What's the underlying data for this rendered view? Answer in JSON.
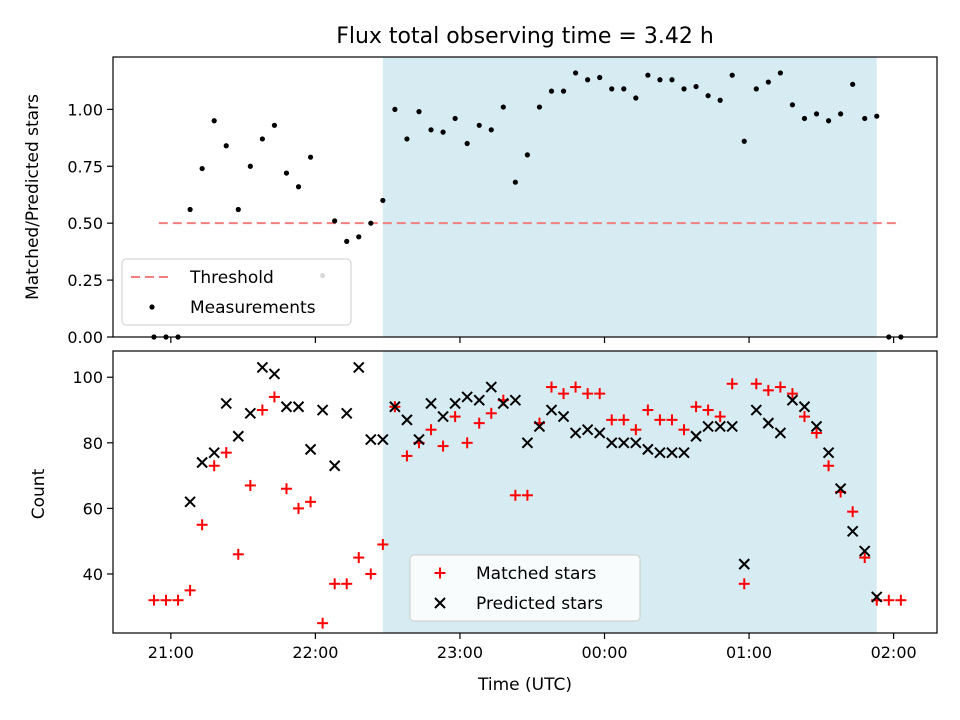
{
  "chart_data": [
    {
      "type": "scatter",
      "title": "Flux total observing time = 3.42 h",
      "ylabel": "Matched/Predicted stars",
      "xlabel": "",
      "ylim": [
        0,
        1.23
      ],
      "yticks": [
        0.0,
        0.25,
        0.5,
        0.75,
        1.0
      ],
      "ytick_labels": [
        "0.00",
        "0.25",
        "0.50",
        "0.75",
        "1.00"
      ],
      "shaded_region": {
        "start": "22:28",
        "end": "01:53",
        "color": "#add8e6"
      },
      "threshold": {
        "name": "Threshold",
        "value": 0.5,
        "x_start": "20:55",
        "x_end": "02:03",
        "color": "#f08080",
        "style": "dashed"
      },
      "legend": {
        "location": "lower-left",
        "entries": [
          "Threshold",
          "Measurements"
        ]
      },
      "series": [
        {
          "name": "Measurements",
          "color": "#000000",
          "marker": "dot",
          "points": [
            [
              "20:53",
              0.0
            ],
            [
              "20:58",
              0.0
            ],
            [
              "21:03",
              0.0
            ],
            [
              "21:08",
              0.56
            ],
            [
              "21:13",
              0.74
            ],
            [
              "21:18",
              0.95
            ],
            [
              "21:23",
              0.84
            ],
            [
              "21:28",
              0.56
            ],
            [
              "21:33",
              0.75
            ],
            [
              "21:38",
              0.87
            ],
            [
              "21:43",
              0.93
            ],
            [
              "21:48",
              0.72
            ],
            [
              "21:53",
              0.66
            ],
            [
              "21:58",
              0.79
            ],
            [
              "22:03",
              0.27
            ],
            [
              "22:08",
              0.51
            ],
            [
              "22:13",
              0.42
            ],
            [
              "22:18",
              0.44
            ],
            [
              "22:23",
              0.5
            ],
            [
              "22:28",
              0.6
            ],
            [
              "22:33",
              1.0
            ],
            [
              "22:38",
              0.87
            ],
            [
              "22:43",
              0.99
            ],
            [
              "22:48",
              0.91
            ],
            [
              "22:53",
              0.9
            ],
            [
              "22:58",
              0.96
            ],
            [
              "23:03",
              0.85
            ],
            [
              "23:08",
              0.93
            ],
            [
              "23:13",
              0.91
            ],
            [
              "23:18",
              1.01
            ],
            [
              "23:23",
              0.68
            ],
            [
              "23:28",
              0.8
            ],
            [
              "23:33",
              1.01
            ],
            [
              "23:38",
              1.08
            ],
            [
              "23:43",
              1.08
            ],
            [
              "23:48",
              1.16
            ],
            [
              "23:53",
              1.13
            ],
            [
              "23:58",
              1.14
            ],
            [
              "00:03",
              1.09
            ],
            [
              "00:08",
              1.09
            ],
            [
              "00:13",
              1.05
            ],
            [
              "00:18",
              1.15
            ],
            [
              "00:23",
              1.13
            ],
            [
              "00:28",
              1.13
            ],
            [
              "00:33",
              1.09
            ],
            [
              "00:38",
              1.1
            ],
            [
              "00:43",
              1.06
            ],
            [
              "00:48",
              1.04
            ],
            [
              "00:53",
              1.15
            ],
            [
              "00:58",
              0.86
            ],
            [
              "01:03",
              1.09
            ],
            [
              "01:08",
              1.12
            ],
            [
              "01:13",
              1.16
            ],
            [
              "01:18",
              1.02
            ],
            [
              "01:23",
              0.96
            ],
            [
              "01:28",
              0.98
            ],
            [
              "01:33",
              0.95
            ],
            [
              "01:38",
              0.98
            ],
            [
              "01:43",
              1.11
            ],
            [
              "01:48",
              0.96
            ],
            [
              "01:53",
              0.97
            ],
            [
              "01:58",
              0.0
            ],
            [
              "02:03",
              0.0
            ]
          ]
        }
      ]
    },
    {
      "type": "scatter",
      "title": "",
      "xlabel": "Time (UTC)",
      "ylabel": "Count",
      "ylim": [
        22,
        108
      ],
      "yticks": [
        40,
        60,
        80,
        100
      ],
      "ytick_labels": [
        "40",
        "60",
        "80",
        "100"
      ],
      "xlim": [
        "20:36",
        "02:18"
      ],
      "xticks": [
        "21:00",
        "22:00",
        "23:00",
        "00:00",
        "01:00",
        "02:00"
      ],
      "xtick_labels": [
        "21:00",
        "22:00",
        "23:00",
        "00:00",
        "01:00",
        "02:00"
      ],
      "shaded_region": {
        "start": "22:28",
        "end": "01:53",
        "color": "#add8e6"
      },
      "legend": {
        "location": "lower-center",
        "entries": [
          "Matched stars",
          "Predicted stars"
        ]
      },
      "series": [
        {
          "name": "Matched stars",
          "color": "#ff0000",
          "marker": "plus",
          "points": [
            [
              "20:53",
              32
            ],
            [
              "20:58",
              32
            ],
            [
              "21:03",
              32
            ],
            [
              "21:08",
              35
            ],
            [
              "21:13",
              55
            ],
            [
              "21:18",
              73
            ],
            [
              "21:23",
              77
            ],
            [
              "21:28",
              46
            ],
            [
              "21:33",
              67
            ],
            [
              "21:38",
              90
            ],
            [
              "21:43",
              94
            ],
            [
              "21:48",
              66
            ],
            [
              "21:53",
              60
            ],
            [
              "21:58",
              62
            ],
            [
              "22:03",
              25
            ],
            [
              "22:08",
              37
            ],
            [
              "22:13",
              37
            ],
            [
              "22:18",
              45
            ],
            [
              "22:23",
              40
            ],
            [
              "22:28",
              49
            ],
            [
              "22:33",
              91
            ],
            [
              "22:38",
              76
            ],
            [
              "22:43",
              80
            ],
            [
              "22:48",
              84
            ],
            [
              "22:53",
              79
            ],
            [
              "22:58",
              88
            ],
            [
              "23:03",
              80
            ],
            [
              "23:08",
              86
            ],
            [
              "23:13",
              89
            ],
            [
              "23:18",
              93
            ],
            [
              "23:23",
              64
            ],
            [
              "23:28",
              64
            ],
            [
              "23:33",
              86
            ],
            [
              "23:38",
              97
            ],
            [
              "23:43",
              95
            ],
            [
              "23:48",
              97
            ],
            [
              "23:53",
              95
            ],
            [
              "23:58",
              95
            ],
            [
              "00:03",
              87
            ],
            [
              "00:08",
              87
            ],
            [
              "00:13",
              84
            ],
            [
              "00:18",
              90
            ],
            [
              "00:23",
              87
            ],
            [
              "00:28",
              87
            ],
            [
              "00:33",
              84
            ],
            [
              "00:38",
              91
            ],
            [
              "00:43",
              90
            ],
            [
              "00:48",
              88
            ],
            [
              "00:53",
              98
            ],
            [
              "00:58",
              37
            ],
            [
              "01:03",
              98
            ],
            [
              "01:08",
              96
            ],
            [
              "01:13",
              97
            ],
            [
              "01:18",
              95
            ],
            [
              "01:23",
              88
            ],
            [
              "01:28",
              83
            ],
            [
              "01:33",
              73
            ],
            [
              "01:38",
              65
            ],
            [
              "01:43",
              59
            ],
            [
              "01:48",
              45
            ],
            [
              "01:53",
              32
            ],
            [
              "01:58",
              32
            ],
            [
              "02:03",
              32
            ]
          ]
        },
        {
          "name": "Predicted stars",
          "color": "#000000",
          "marker": "x",
          "points": [
            [
              "21:08",
              62
            ],
            [
              "21:13",
              74
            ],
            [
              "21:18",
              77
            ],
            [
              "21:23",
              92
            ],
            [
              "21:28",
              82
            ],
            [
              "21:33",
              89
            ],
            [
              "21:38",
              103
            ],
            [
              "21:43",
              101
            ],
            [
              "21:48",
              91
            ],
            [
              "21:53",
              91
            ],
            [
              "21:58",
              78
            ],
            [
              "22:03",
              90
            ],
            [
              "22:08",
              73
            ],
            [
              "22:13",
              89
            ],
            [
              "22:18",
              103
            ],
            [
              "22:23",
              81
            ],
            [
              "22:28",
              81
            ],
            [
              "22:33",
              91
            ],
            [
              "22:38",
              87
            ],
            [
              "22:43",
              81
            ],
            [
              "22:48",
              92
            ],
            [
              "22:53",
              88
            ],
            [
              "22:58",
              92
            ],
            [
              "23:03",
              94
            ],
            [
              "23:08",
              93
            ],
            [
              "23:13",
              97
            ],
            [
              "23:18",
              92
            ],
            [
              "23:23",
              93
            ],
            [
              "23:28",
              80
            ],
            [
              "23:33",
              85
            ],
            [
              "23:38",
              90
            ],
            [
              "23:43",
              88
            ],
            [
              "23:48",
              83
            ],
            [
              "23:53",
              84
            ],
            [
              "23:58",
              83
            ],
            [
              "00:03",
              80
            ],
            [
              "00:08",
              80
            ],
            [
              "00:13",
              80
            ],
            [
              "00:18",
              78
            ],
            [
              "00:23",
              77
            ],
            [
              "00:28",
              77
            ],
            [
              "00:33",
              77
            ],
            [
              "00:38",
              82
            ],
            [
              "00:43",
              85
            ],
            [
              "00:48",
              85
            ],
            [
              "00:53",
              85
            ],
            [
              "00:58",
              43
            ],
            [
              "01:03",
              90
            ],
            [
              "01:08",
              86
            ],
            [
              "01:13",
              83
            ],
            [
              "01:18",
              93
            ],
            [
              "01:23",
              91
            ],
            [
              "01:28",
              85
            ],
            [
              "01:33",
              77
            ],
            [
              "01:38",
              66
            ],
            [
              "01:43",
              53
            ],
            [
              "01:48",
              47
            ],
            [
              "01:53",
              33
            ]
          ]
        }
      ]
    }
  ]
}
